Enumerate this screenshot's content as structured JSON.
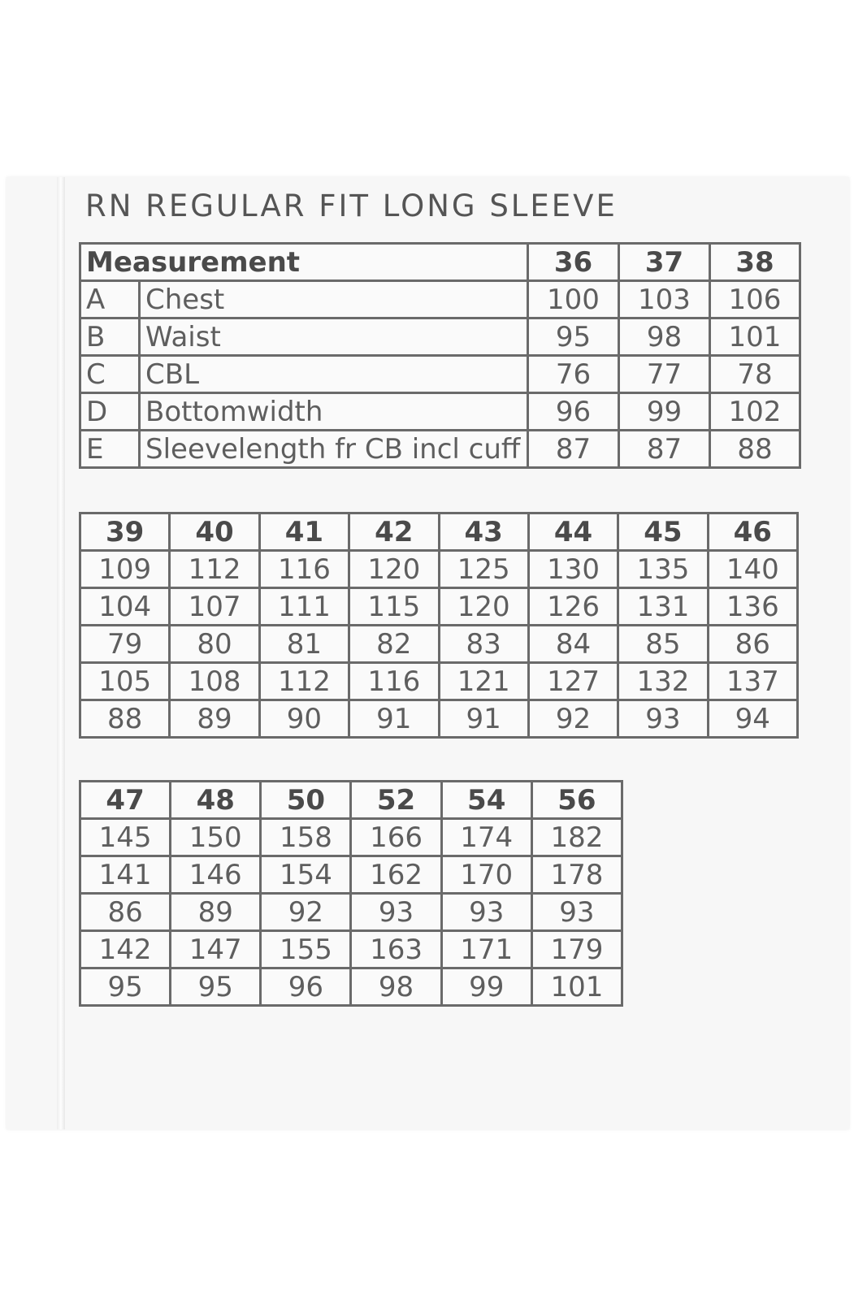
{
  "title": "RN REGULAR FIT LONG SLEEVE",
  "measurement_header": "Measurement",
  "rows": [
    {
      "code": "A",
      "name": "Chest"
    },
    {
      "code": "B",
      "name": "Waist"
    },
    {
      "code": "C",
      "name": "CBL"
    },
    {
      "code": "D",
      "name": "Bottomwidth"
    },
    {
      "code": "E",
      "name": "Sleevelength fr CB incl cuff"
    }
  ],
  "tables": [
    {
      "sizes": [
        "36",
        "37",
        "38"
      ],
      "values": [
        [
          "100",
          "103",
          "106"
        ],
        [
          "95",
          "98",
          "101"
        ],
        [
          "76",
          "77",
          "78"
        ],
        [
          "96",
          "99",
          "102"
        ],
        [
          "87",
          "87",
          "88"
        ]
      ]
    },
    {
      "sizes": [
        "39",
        "40",
        "41",
        "42",
        "43",
        "44",
        "45",
        "46"
      ],
      "values": [
        [
          "109",
          "112",
          "116",
          "120",
          "125",
          "130",
          "135",
          "140"
        ],
        [
          "104",
          "107",
          "111",
          "115",
          "120",
          "126",
          "131",
          "136"
        ],
        [
          "79",
          "80",
          "81",
          "82",
          "83",
          "84",
          "85",
          "86"
        ],
        [
          "105",
          "108",
          "112",
          "116",
          "121",
          "127",
          "132",
          "137"
        ],
        [
          "88",
          "89",
          "90",
          "91",
          "91",
          "92",
          "93",
          "94"
        ]
      ]
    },
    {
      "sizes": [
        "47",
        "48",
        "50",
        "52",
        "54",
        "56"
      ],
      "values": [
        [
          "145",
          "150",
          "158",
          "166",
          "174",
          "182"
        ],
        [
          "141",
          "146",
          "154",
          "162",
          "170",
          "178"
        ],
        [
          "86",
          "89",
          "92",
          "93",
          "93",
          "93"
        ],
        [
          "142",
          "147",
          "155",
          "163",
          "171",
          "179"
        ],
        [
          "95",
          "95",
          "96",
          "98",
          "99",
          "101"
        ]
      ]
    }
  ]
}
